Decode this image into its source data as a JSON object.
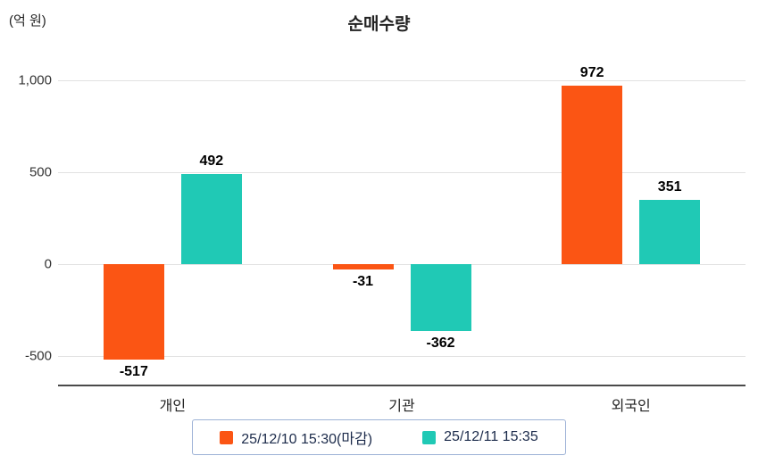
{
  "chart_data": {
    "type": "bar",
    "title": "순매수량",
    "unit_label": "(억 원)",
    "categories": [
      "개인",
      "기관",
      "외국인"
    ],
    "series": [
      {
        "name": "25/12/10 15:30(마감)",
        "color": "#FB5514",
        "values": [
          -517,
          -31,
          972
        ]
      },
      {
        "name": "25/12/11 15:35",
        "color": "#20C9B5",
        "values": [
          492,
          -362,
          351
        ]
      }
    ],
    "yticks": [
      1000,
      500,
      0,
      -500
    ],
    "ylim": [
      -650,
      1150
    ],
    "grid": true,
    "legend_position": "bottom"
  }
}
